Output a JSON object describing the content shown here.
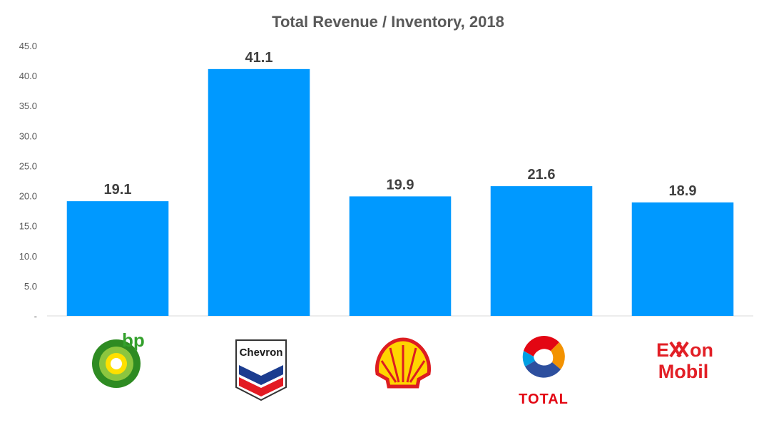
{
  "chart_data": {
    "type": "bar",
    "title": "Total Revenue / Inventory, 2018",
    "xlabel": "",
    "ylabel": "",
    "ylim": [
      0,
      45
    ],
    "yticks": [
      "-",
      "5.0",
      "10.0",
      "15.0",
      "20.0",
      "25.0",
      "30.0",
      "35.0",
      "40.0",
      "45.0"
    ],
    "grid": false,
    "legend": "none",
    "bar_color": "#0099FF",
    "categories": [
      "bp",
      "Chevron",
      "Shell",
      "Total",
      "ExxonMobil"
    ],
    "values": [
      19.1,
      41.1,
      19.9,
      21.6,
      18.9
    ],
    "data_labels": [
      "19.1",
      "41.1",
      "19.9",
      "21.6",
      "18.9"
    ]
  },
  "logos": {
    "bp": {
      "text": "bp",
      "icon": "bp-helios-icon",
      "color": "#33A02C"
    },
    "chevron": {
      "text": "Chevron",
      "icon": "chevron-hallmark-icon"
    },
    "shell": {
      "icon": "shell-pecten-icon"
    },
    "total": {
      "text": "TOTAL",
      "icon": "total-sphere-icon"
    },
    "exxon": {
      "line1": "E",
      "line1b": "on",
      "line2": "Mobil",
      "icon": "exxonmobil-wordmark-icon",
      "color": "#E21F26"
    }
  }
}
